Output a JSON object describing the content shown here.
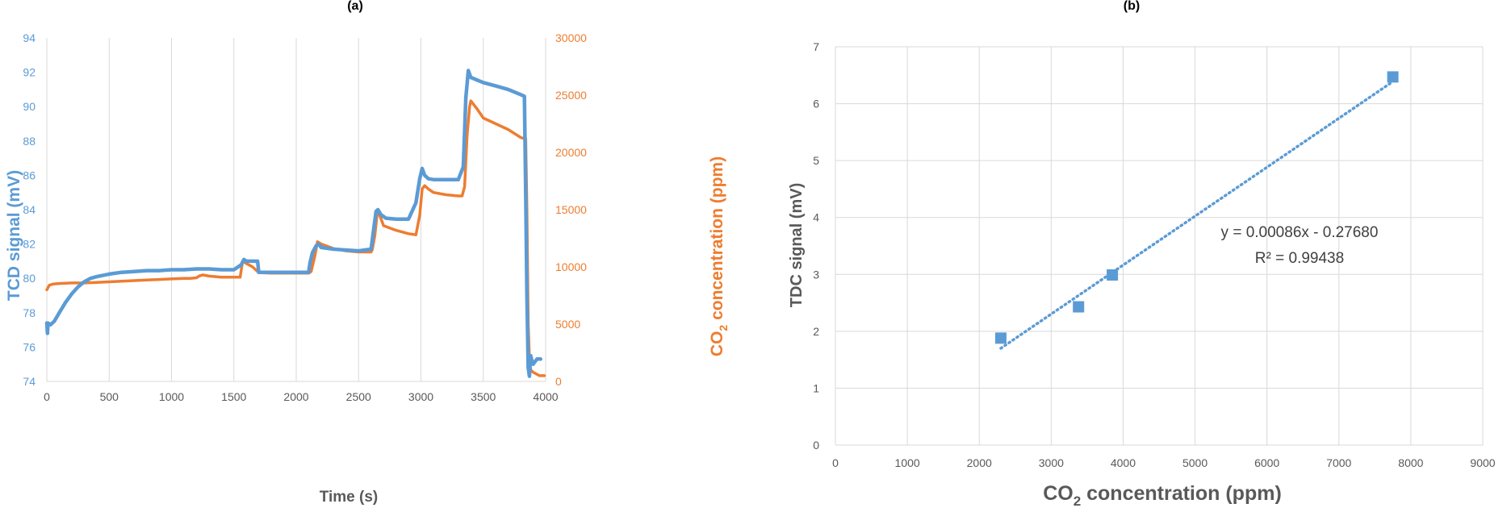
{
  "chart_data": [
    {
      "type": "line",
      "panel_label": "(a)",
      "xlabel": "Time (s)",
      "ylabel": "TCD signal (mV)",
      "y2label_main": "CO",
      "y2label_sub": "2",
      "y2label_rest": " concentration (ppm)",
      "xlim": [
        0,
        4000
      ],
      "ylim": [
        74,
        94
      ],
      "y2lim": [
        0,
        30000
      ],
      "x_ticks": [
        "0",
        "500",
        "1000",
        "1500",
        "2000",
        "2500",
        "3000",
        "3500",
        "4000"
      ],
      "y_ticks": [
        "74",
        "76",
        "78",
        "80",
        "82",
        "84",
        "86",
        "88",
        "90",
        "92",
        "94"
      ],
      "y2_ticks": [
        "0",
        "5000",
        "10000",
        "15000",
        "20000",
        "25000",
        "30000"
      ],
      "grid": "vertical",
      "colors": {
        "tcd": "#5b9bd5",
        "co2": "#ed7d31"
      },
      "series": [
        {
          "key": "tcd",
          "axis": "left",
          "x": [
            0,
            5,
            10,
            30,
            60,
            100,
            150,
            200,
            250,
            300,
            350,
            400,
            500,
            600,
            700,
            800,
            900,
            1000,
            1100,
            1200,
            1300,
            1400,
            1500,
            1560,
            1580,
            1600,
            1650,
            1690,
            1700,
            1800,
            1900,
            2000,
            2100,
            2110,
            2130,
            2160,
            2180,
            2200,
            2300,
            2400,
            2500,
            2600,
            2620,
            2640,
            2655,
            2680,
            2720,
            2800,
            2900,
            2960,
            2990,
            3010,
            3030,
            3060,
            3100,
            3200,
            3300,
            3340,
            3360,
            3380,
            3400,
            3500,
            3600,
            3700,
            3800,
            3830,
            3840,
            3850,
            3860,
            3870,
            3880,
            3890,
            3900,
            3930,
            3960
          ],
          "values": [
            77.4,
            76.8,
            77.4,
            77.3,
            77.5,
            78.0,
            78.6,
            79.1,
            79.5,
            79.8,
            80.0,
            80.1,
            80.25,
            80.35,
            80.4,
            80.45,
            80.45,
            80.5,
            80.5,
            80.55,
            80.55,
            80.5,
            80.5,
            80.8,
            81.1,
            81.0,
            81.0,
            81.0,
            80.35,
            80.35,
            80.35,
            80.35,
            80.35,
            80.9,
            81.5,
            81.9,
            82.0,
            81.8,
            81.7,
            81.65,
            81.6,
            81.7,
            82.8,
            83.9,
            84.0,
            83.7,
            83.5,
            83.45,
            83.45,
            84.4,
            85.8,
            86.4,
            86.0,
            85.8,
            85.75,
            85.75,
            85.75,
            86.5,
            90.5,
            92.1,
            91.7,
            91.4,
            91.2,
            91.0,
            90.7,
            90.6,
            85.0,
            79.0,
            74.8,
            74.3,
            75.5,
            75.2,
            75.0,
            75.3,
            75.3
          ]
        },
        {
          "key": "co2",
          "axis": "right",
          "x": [
            0,
            20,
            50,
            100,
            200,
            300,
            400,
            500,
            600,
            700,
            800,
            900,
            1000,
            1100,
            1150,
            1200,
            1220,
            1250,
            1300,
            1400,
            1500,
            1550,
            1570,
            1600,
            1650,
            1700,
            1800,
            1900,
            2000,
            2100,
            2120,
            2150,
            2170,
            2200,
            2300,
            2400,
            2500,
            2600,
            2610,
            2630,
            2650,
            2670,
            2700,
            2800,
            2900,
            2960,
            2990,
            3010,
            3030,
            3060,
            3100,
            3200,
            3300,
            3330,
            3350,
            3370,
            3390,
            3400,
            3450,
            3500,
            3600,
            3700,
            3800,
            3830,
            3840,
            3850,
            3860,
            3870,
            3880,
            3900,
            3950,
            3990
          ],
          "values": [
            8000,
            8400,
            8500,
            8550,
            8600,
            8600,
            8650,
            8700,
            8750,
            8800,
            8850,
            8900,
            8950,
            9000,
            9000,
            9050,
            9200,
            9300,
            9200,
            9100,
            9100,
            9100,
            10500,
            10300,
            10000,
            9500,
            9450,
            9450,
            9450,
            9450,
            9600,
            11000,
            12200,
            12000,
            11600,
            11400,
            11300,
            11300,
            11500,
            12700,
            14700,
            14500,
            13600,
            13200,
            12900,
            12800,
            14500,
            16800,
            17100,
            16800,
            16500,
            16300,
            16200,
            16200,
            17000,
            21500,
            24000,
            24500,
            23800,
            23000,
            22500,
            22000,
            21300,
            21200,
            21200,
            15000,
            5000,
            2000,
            1000,
            800,
            500,
            500
          ]
        }
      ]
    },
    {
      "type": "scatter",
      "panel_label": "(b)",
      "xlabel_main": "CO",
      "xlabel_sub": "2",
      "xlabel_rest": " concentration (ppm)",
      "ylabel": "TDC signal (mV)",
      "xlim": [
        0,
        9000
      ],
      "ylim": [
        0,
        7
      ],
      "x_ticks": [
        "0",
        "1000",
        "2000",
        "3000",
        "4000",
        "5000",
        "6000",
        "7000",
        "8000",
        "9000"
      ],
      "y_ticks": [
        "0",
        "1",
        "2",
        "3",
        "4",
        "5",
        "6",
        "7"
      ],
      "grid": "both",
      "color": "#5b9bd5",
      "points": {
        "x": [
          2300,
          3380,
          3850,
          7750
        ],
        "y": [
          1.88,
          2.43,
          2.99,
          6.47
        ]
      },
      "trendline": {
        "slope": 0.00086,
        "intercept": -0.2768,
        "x_from": 2300,
        "x_to": 7750
      },
      "equation": "y = 0.00086x - 0.27680",
      "r_squared": "R² = 0.99438"
    }
  ]
}
